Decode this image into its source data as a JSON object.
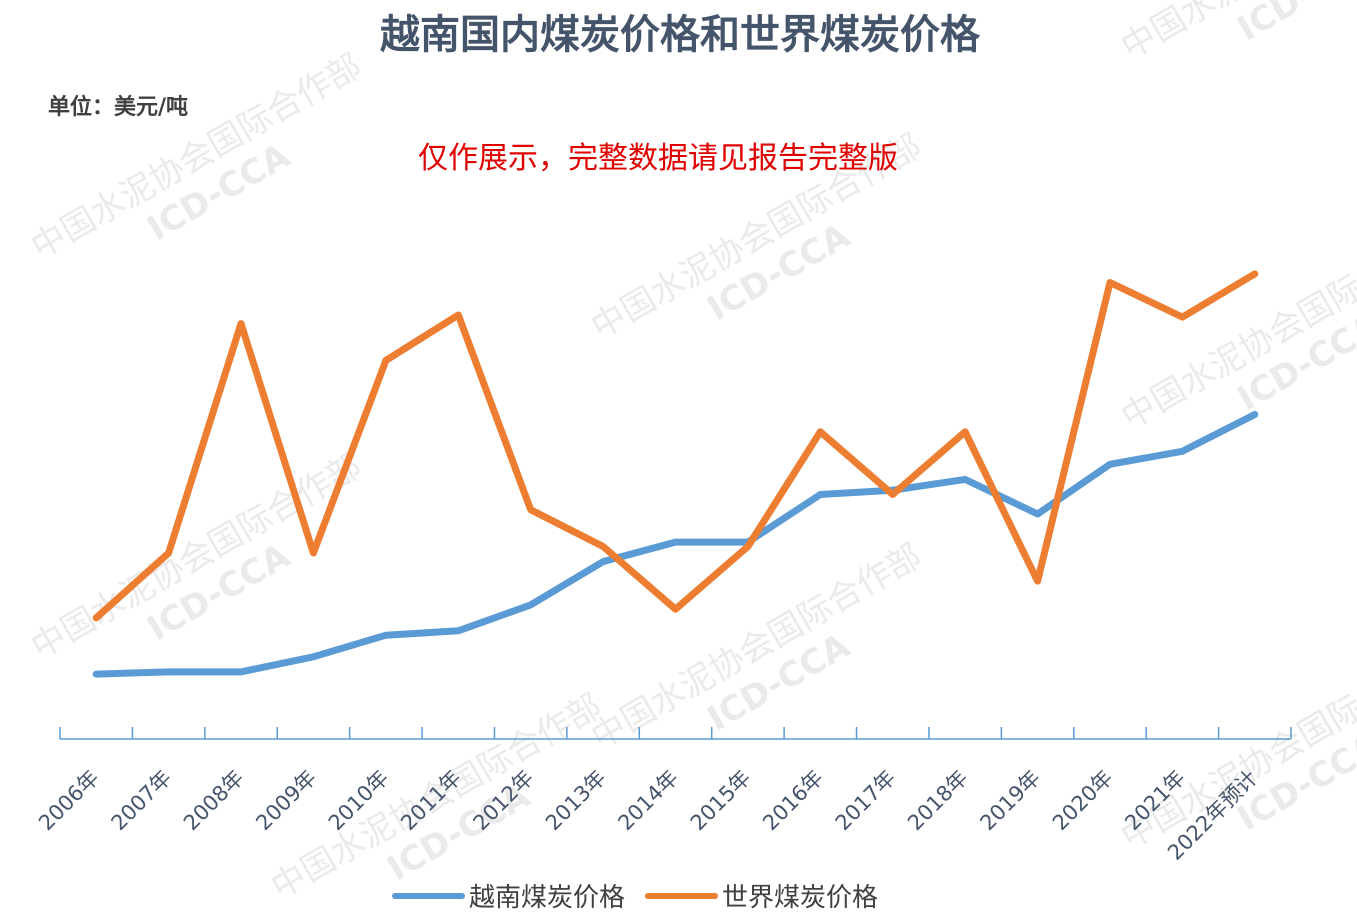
{
  "chart_data": {
    "type": "line",
    "title": "越南国内煤炭价格和世界煤炭价格",
    "unit_label": "单位：美元/吨",
    "notice": "仅作展示，完整数据请见报告完整版",
    "categories": [
      "2006年",
      "2007年",
      "2008年",
      "2009年",
      "2010年",
      "2011年",
      "2012年",
      "2013年",
      "2014年",
      "2015年",
      "2016年",
      "2017年",
      "2018年",
      "2019年",
      "2020年",
      "2021年",
      "2022年预计"
    ],
    "series": [
      {
        "name": "越南煤炭价格",
        "color": "#5b9bd5",
        "values": [
          30,
          31,
          31,
          38,
          48,
          50,
          62,
          82,
          91,
          91,
          113,
          115,
          120,
          104,
          127,
          133,
          150
        ]
      },
      {
        "name": "世界煤炭价格",
        "color": "#ed7d31",
        "values": [
          56,
          86,
          192,
          86,
          175,
          196,
          106,
          89,
          60,
          89,
          142,
          113,
          142,
          73,
          211,
          195,
          215
        ]
      }
    ],
    "ylim": [
      0,
      300
    ],
    "grid": false,
    "legend_position": "bottom",
    "y_axis_labels_visible": false
  },
  "watermark": {
    "line1": "中国水泥协会国际合作部",
    "line2": "ICD-CCA"
  }
}
